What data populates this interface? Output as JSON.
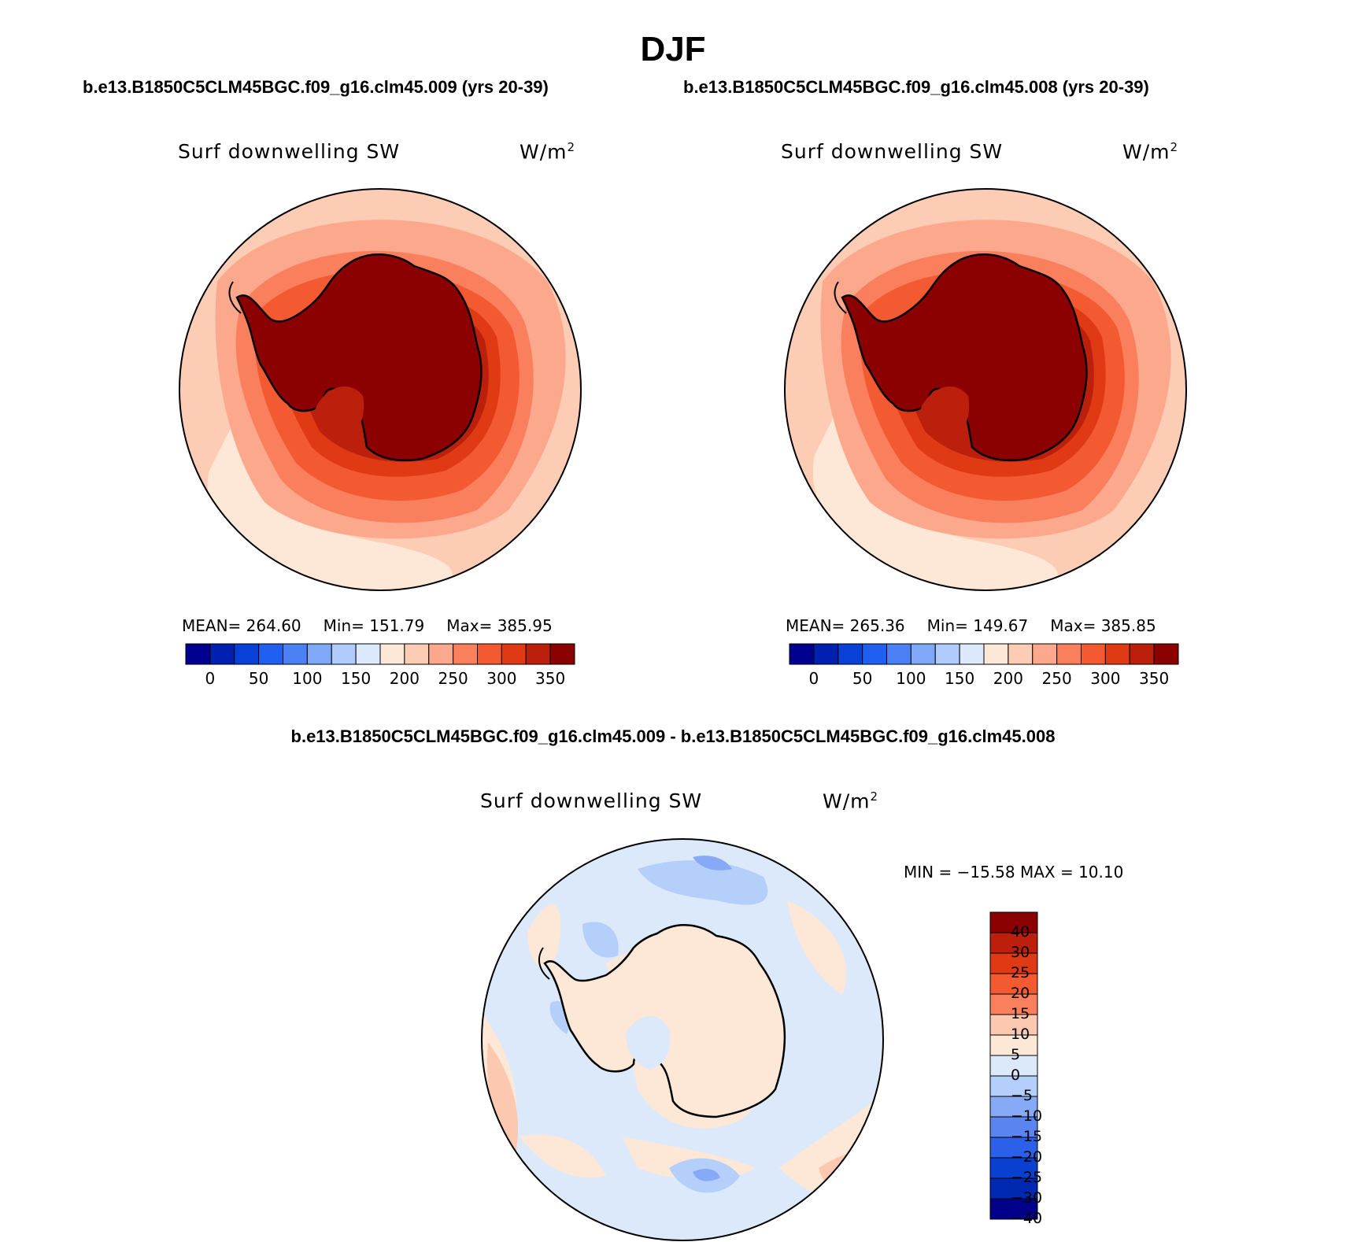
{
  "title": "DJF",
  "panels": [
    {
      "case": "b.e13.B1850C5CLM45BGC.f09_g16.clm45.009 (yrs 20-39)",
      "variable": "Surf downwelling SW",
      "units": "W/m",
      "units_exp": "2",
      "stats": {
        "mean_label": "MEAN=",
        "mean": "264.60",
        "min_label": "Min=",
        "min": "151.79",
        "max_label": "Max=",
        "max": "385.95"
      }
    },
    {
      "case": "b.e13.B1850C5CLM45BGC.f09_g16.clm45.008 (yrs 20-39)",
      "variable": "Surf downwelling SW",
      "units": "W/m",
      "units_exp": "2",
      "stats": {
        "mean_label": "MEAN=",
        "mean": "265.36",
        "min_label": "Min=",
        "min": "149.67",
        "max_label": "Max=",
        "max": "385.85"
      }
    }
  ],
  "colorbar": {
    "colors": [
      "#000090",
      "#0020b0",
      "#0840d8",
      "#2060f0",
      "#4a80f4",
      "#80a8f8",
      "#b0ccfc",
      "#dce8fc",
      "#fde8d8",
      "#fdccb4",
      "#fca88c",
      "#fa7f5c",
      "#f45a32",
      "#e03a14",
      "#bc200c",
      "#8b0000"
    ],
    "labels": [
      "0",
      "50",
      "100",
      "150",
      "200",
      "250",
      "300",
      "350"
    ]
  },
  "difference": {
    "title": "b.e13.B1850C5CLM45BGC.f09_g16.clm45.009 - b.e13.B1850C5CLM45BGC.f09_g16.clm45.008",
    "variable": "Surf downwelling SW",
    "units": "W/m",
    "units_exp": "2",
    "minmax": "MIN = −15.58 MAX =  10.10",
    "colorbar": {
      "colors": [
        "#8b0000",
        "#bc200c",
        "#e03a14",
        "#f45a32",
        "#fa7f5c",
        "#fcc8b0",
        "#fde8d8",
        "#dbe9fb",
        "#b4cffa",
        "#86aaf6",
        "#5a84f0",
        "#2c60e8",
        "#0a40d0",
        "#0028b0",
        "#000088"
      ],
      "labels": [
        "40",
        "30",
        "25",
        "20",
        "15",
        "10",
        "5",
        "0",
        "−5",
        "−10",
        "−15",
        "−20",
        "−25",
        "−30",
        "−40"
      ]
    }
  }
}
